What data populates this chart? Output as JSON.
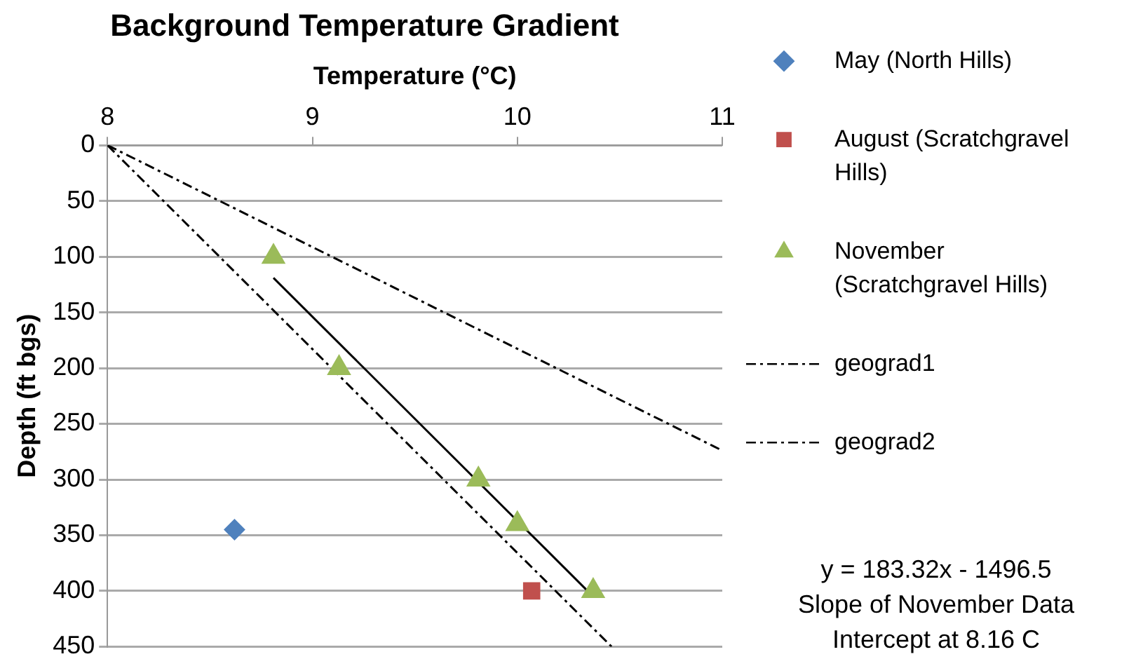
{
  "chart_data": {
    "type": "scatter",
    "title": "Background Temperature Gradient",
    "xlabel": "Temperature (°C)",
    "ylabel": "Depth (ft bgs)",
    "xlim": [
      8,
      11
    ],
    "xticks": [
      8,
      9,
      10,
      11
    ],
    "ylim": [
      450,
      0
    ],
    "yticks": [
      0,
      50,
      100,
      150,
      200,
      250,
      300,
      350,
      400,
      450
    ],
    "grid": "y",
    "legend": "right",
    "series": [
      {
        "name": "May (North Hills)",
        "color": "#4f81bd",
        "marker": "diamond",
        "x": [
          8.62
        ],
        "values": [
          345
        ]
      },
      {
        "name": "August (Scratchgravel Hills)",
        "color": "#c0504d",
        "marker": "square",
        "x": [
          10.07
        ],
        "values": [
          400
        ]
      },
      {
        "name": "November (Scratchgravel Hills)",
        "color": "#9bbb59",
        "marker": "triangle",
        "x": [
          8.81,
          9.13,
          9.81,
          10.0,
          10.37
        ],
        "values": [
          100,
          200,
          300,
          340,
          400
        ]
      },
      {
        "name": "geograd1",
        "type": "line",
        "color": "#000000",
        "marker": "none",
        "line_style": "dashed",
        "x": [
          8,
          11
        ],
        "values": [
          0,
          274
        ]
      },
      {
        "name": "geograd2",
        "type": "line",
        "color": "#000000",
        "marker": "none",
        "line_style": "dashed",
        "x": [
          8,
          10.46
        ],
        "values": [
          0,
          450
        ]
      },
      {
        "type": "line",
        "color": "#000000",
        "marker": "none",
        "line_style": "solid",
        "x": [
          8.81,
          10.37
        ],
        "values": [
          119,
          405
        ]
      }
    ],
    "annotations": [
      "y = 183.32x - 1496.5",
      "Slope of November Data",
      "Intercept at 8.16 C"
    ]
  }
}
